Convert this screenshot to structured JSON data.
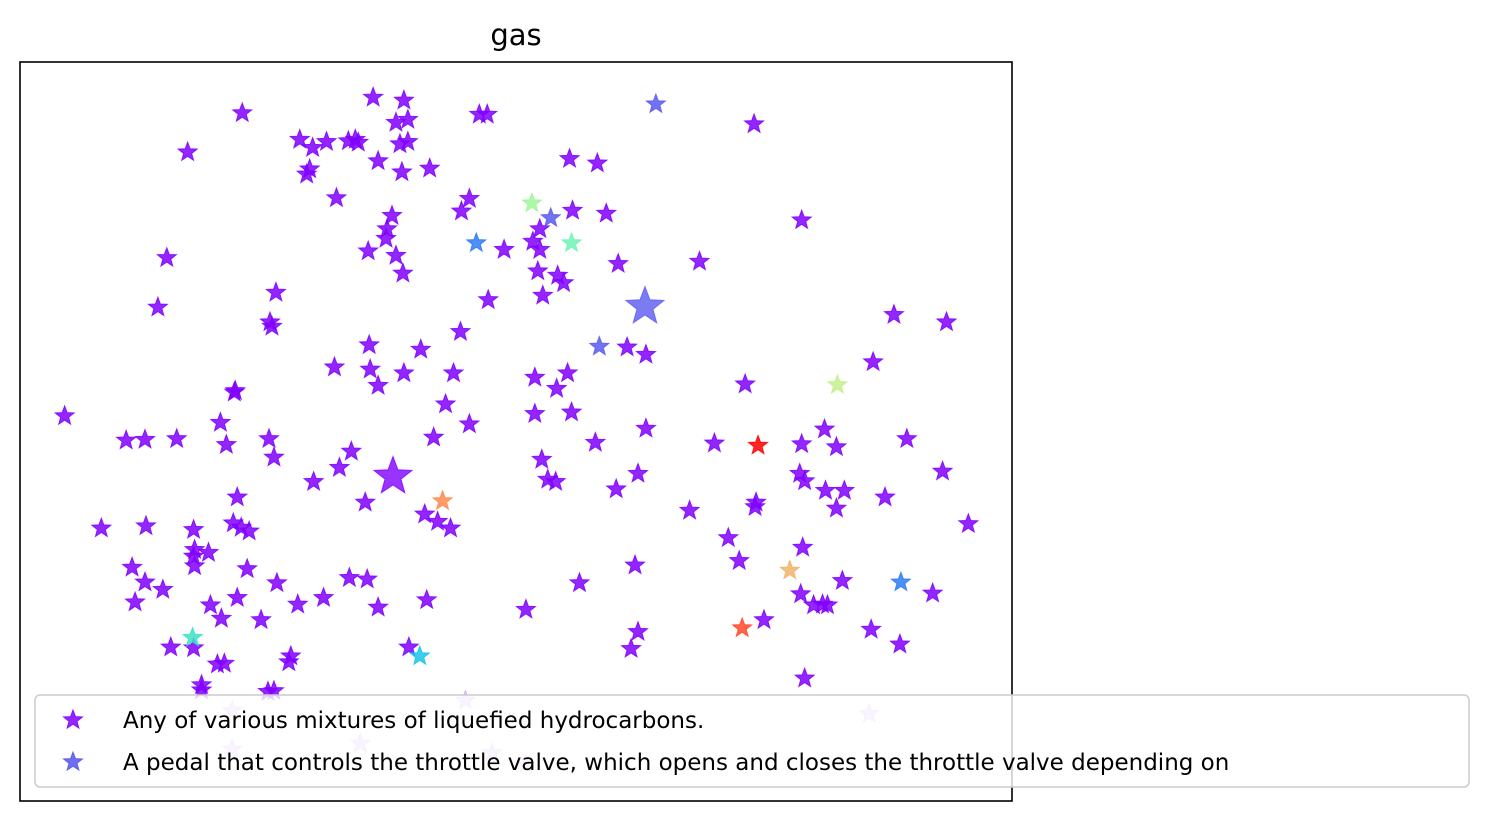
{
  "chart_data": {
    "type": "scatter",
    "title": "gas",
    "xlabel": "",
    "ylabel": "",
    "xlim": [
      0,
      100
    ],
    "ylim": [
      0,
      100
    ],
    "axis_ticks": "none",
    "grid": false,
    "marker": "star",
    "legend": {
      "placement": "lower-right, extending beyond axes",
      "entries": [
        {
          "label": "Any of various mixtures of liquefied hydrocarbons.",
          "color": "#8000ff"
        },
        {
          "label": "A pedal that controls the throttle valve, which opens and closes the throttle valve depending on",
          "color": "#5555ee"
        }
      ]
    },
    "colors": {
      "violet": "#8000ff",
      "indigo": "#5a5af0",
      "blue": "#2e7bf3",
      "cyan": "#18c5e8",
      "teal": "#3de0c4",
      "mint": "#6ff3b4",
      "lightgreen": "#9cf79a",
      "lime": "#c6ee8c",
      "tan": "#f0b46c",
      "orange": "#ff8a4c",
      "redorange": "#ff4a28",
      "red": "#ff0000"
    },
    "series": [
      {
        "color_key": "violet",
        "points": [
          [
            22.4,
            93.1
          ],
          [
            35.6,
            95.2
          ],
          [
            38.7,
            94.8
          ],
          [
            46.3,
            92.9
          ],
          [
            47.1,
            92.9
          ],
          [
            37.9,
            91.8
          ],
          [
            39.1,
            92.2
          ],
          [
            28.2,
            89.5
          ],
          [
            29.5,
            88.4
          ],
          [
            30.9,
            89.2
          ],
          [
            33.1,
            89.3
          ],
          [
            33.8,
            89.5
          ],
          [
            34.1,
            89.1
          ],
          [
            38.3,
            88.9
          ],
          [
            39.1,
            89.2
          ],
          [
            16.9,
            87.8
          ],
          [
            28.9,
            84.8
          ],
          [
            29.2,
            85.5
          ],
          [
            36.1,
            86.6
          ],
          [
            38.5,
            85.1
          ],
          [
            41.3,
            85.6
          ],
          [
            55.4,
            86.9
          ],
          [
            58.2,
            86.3
          ],
          [
            74.0,
            91.6
          ],
          [
            31.9,
            81.6
          ],
          [
            44.5,
            79.8
          ],
          [
            45.3,
            81.5
          ],
          [
            55.7,
            79.9
          ],
          [
            59.1,
            79.5
          ],
          [
            37.5,
            79.2
          ],
          [
            37.0,
            77.4
          ],
          [
            36.9,
            76.1
          ],
          [
            48.8,
            74.6
          ],
          [
            51.7,
            75.7
          ],
          [
            52.4,
            77.4
          ],
          [
            52.4,
            74.6
          ],
          [
            35.1,
            74.4
          ],
          [
            37.9,
            73.8
          ],
          [
            14.8,
            73.5
          ],
          [
            60.3,
            72.7
          ],
          [
            68.5,
            73.0
          ],
          [
            78.8,
            78.6
          ],
          [
            38.6,
            71.4
          ],
          [
            52.2,
            71.7
          ],
          [
            54.2,
            71.1
          ],
          [
            54.8,
            70.1
          ],
          [
            25.8,
            68.8
          ],
          [
            47.2,
            67.8
          ],
          [
            52.7,
            68.4
          ],
          [
            13.9,
            66.8
          ],
          [
            25.2,
            64.8
          ],
          [
            25.4,
            64.2
          ],
          [
            44.4,
            63.5
          ],
          [
            35.2,
            61.7
          ],
          [
            40.4,
            61.1
          ],
          [
            61.2,
            61.4
          ],
          [
            63.1,
            60.4
          ],
          [
            88.1,
            65.8
          ],
          [
            93.4,
            64.8
          ],
          [
            31.7,
            58.7
          ],
          [
            35.3,
            58.4
          ],
          [
            38.7,
            57.9
          ],
          [
            43.7,
            57.9
          ],
          [
            51.9,
            57.3
          ],
          [
            55.2,
            57.9
          ],
          [
            86.0,
            59.4
          ],
          [
            21.7,
            55.5
          ],
          [
            21.6,
            55.3
          ],
          [
            36.1,
            56.2
          ],
          [
            54.1,
            55.8
          ],
          [
            73.1,
            56.4
          ],
          [
            4.5,
            52.1
          ],
          [
            42.9,
            53.7
          ],
          [
            51.9,
            52.4
          ],
          [
            55.6,
            52.6
          ],
          [
            20.2,
            51.2
          ],
          [
            45.3,
            51.0
          ],
          [
            63.1,
            50.4
          ],
          [
            81.1,
            50.3
          ],
          [
            10.7,
            48.8
          ],
          [
            12.6,
            48.9
          ],
          [
            15.8,
            49.0
          ],
          [
            20.8,
            48.2
          ],
          [
            25.1,
            49.0
          ],
          [
            41.7,
            49.2
          ],
          [
            58.0,
            48.5
          ],
          [
            70.0,
            48.4
          ],
          [
            78.8,
            48.3
          ],
          [
            82.3,
            47.9
          ],
          [
            89.4,
            49.0
          ],
          [
            25.6,
            46.5
          ],
          [
            33.4,
            47.3
          ],
          [
            32.2,
            45.1
          ],
          [
            52.6,
            46.2
          ],
          [
            62.3,
            44.3
          ],
          [
            29.6,
            43.2
          ],
          [
            53.2,
            43.5
          ],
          [
            54.0,
            43.2
          ],
          [
            78.6,
            44.3
          ],
          [
            79.1,
            43.3
          ],
          [
            93.0,
            44.6
          ],
          [
            81.2,
            42.0
          ],
          [
            83.1,
            42.0
          ],
          [
            60.1,
            42.2
          ],
          [
            21.9,
            41.1
          ],
          [
            87.2,
            41.1
          ],
          [
            34.8,
            40.4
          ],
          [
            74.2,
            40.4
          ],
          [
            74.1,
            39.8
          ],
          [
            82.3,
            39.6
          ],
          [
            67.5,
            39.3
          ],
          [
            95.6,
            37.5
          ],
          [
            8.2,
            36.9
          ],
          [
            12.7,
            37.2
          ],
          [
            17.5,
            36.7
          ],
          [
            21.5,
            37.6
          ],
          [
            22.3,
            37.0
          ],
          [
            23.1,
            36.5
          ],
          [
            40.8,
            38.8
          ],
          [
            42.1,
            37.8
          ],
          [
            43.4,
            36.9
          ],
          [
            71.4,
            35.6
          ],
          [
            78.9,
            34.3
          ],
          [
            17.6,
            34.0
          ],
          [
            19.0,
            33.6
          ],
          [
            17.5,
            33.1
          ],
          [
            11.3,
            31.6
          ],
          [
            17.6,
            31.8
          ],
          [
            22.9,
            31.4
          ],
          [
            72.5,
            32.5
          ],
          [
            62.0,
            31.9
          ],
          [
            12.6,
            29.6
          ],
          [
            33.2,
            30.2
          ],
          [
            35.0,
            30.0
          ],
          [
            25.9,
            29.5
          ],
          [
            56.4,
            29.5
          ],
          [
            82.9,
            29.8
          ],
          [
            14.4,
            28.6
          ],
          [
            21.9,
            27.5
          ],
          [
            30.6,
            27.5
          ],
          [
            41.0,
            27.2
          ],
          [
            78.7,
            28.0
          ],
          [
            11.6,
            26.9
          ],
          [
            19.2,
            26.5
          ],
          [
            28.0,
            26.6
          ],
          [
            36.1,
            26.2
          ],
          [
            51.0,
            25.9
          ],
          [
            80.0,
            26.5
          ],
          [
            81.4,
            26.5
          ],
          [
            80.9,
            26.6
          ],
          [
            92.0,
            28.1
          ],
          [
            20.3,
            24.7
          ],
          [
            24.3,
            24.5
          ],
          [
            75.0,
            24.5
          ],
          [
            85.8,
            23.2
          ],
          [
            62.3,
            22.9
          ],
          [
            15.2,
            20.8
          ],
          [
            17.5,
            20.7
          ],
          [
            39.2,
            20.8
          ],
          [
            61.6,
            20.6
          ],
          [
            88.7,
            21.2
          ],
          [
            27.3,
            19.6
          ],
          [
            27.1,
            18.8
          ],
          [
            19.9,
            18.5
          ],
          [
            20.6,
            18.6
          ],
          [
            79.1,
            16.6
          ],
          [
            18.3,
            15.7
          ],
          [
            18.3,
            15.0
          ],
          [
            25.0,
            14.8
          ],
          [
            25.6,
            14.9
          ]
        ],
        "large_points": [
          [
            37.6,
            43.9
          ]
        ]
      },
      {
        "color_key": "violet",
        "faded": true,
        "points": [
          [
            44.9,
            13.6
          ],
          [
            21.4,
            12.2
          ],
          [
            85.6,
            11.8
          ],
          [
            21.4,
            7.0
          ],
          [
            34.3,
            7.8
          ],
          [
            47.6,
            6.5
          ],
          [
            51.0,
            4.9
          ]
        ]
      },
      {
        "color_key": "indigo",
        "points": [
          [
            64.1,
            94.3
          ],
          [
            53.5,
            78.9
          ],
          [
            58.4,
            61.5
          ]
        ],
        "large_points": [
          [
            63.0,
            66.9
          ]
        ]
      },
      {
        "color_key": "blue",
        "points": [
          [
            46.0,
            75.5
          ],
          [
            88.8,
            29.6
          ]
        ]
      },
      {
        "color_key": "cyan",
        "points": [
          [
            40.3,
            19.6
          ]
        ]
      },
      {
        "color_key": "teal",
        "points": [
          [
            17.4,
            22.1
          ]
        ]
      },
      {
        "color_key": "mint",
        "points": [
          [
            55.6,
            75.5
          ]
        ]
      },
      {
        "color_key": "lightgreen",
        "points": [
          [
            51.6,
            80.9
          ]
        ]
      },
      {
        "color_key": "lime",
        "points": [
          [
            82.4,
            56.3
          ]
        ]
      },
      {
        "color_key": "tan",
        "points": [
          [
            77.6,
            31.2
          ]
        ]
      },
      {
        "color_key": "orange",
        "points": [
          [
            42.6,
            40.6
          ]
        ]
      },
      {
        "color_key": "redorange",
        "points": [
          [
            72.8,
            23.4
          ]
        ]
      },
      {
        "color_key": "red",
        "points": [
          [
            74.4,
            48.1
          ]
        ]
      }
    ]
  }
}
